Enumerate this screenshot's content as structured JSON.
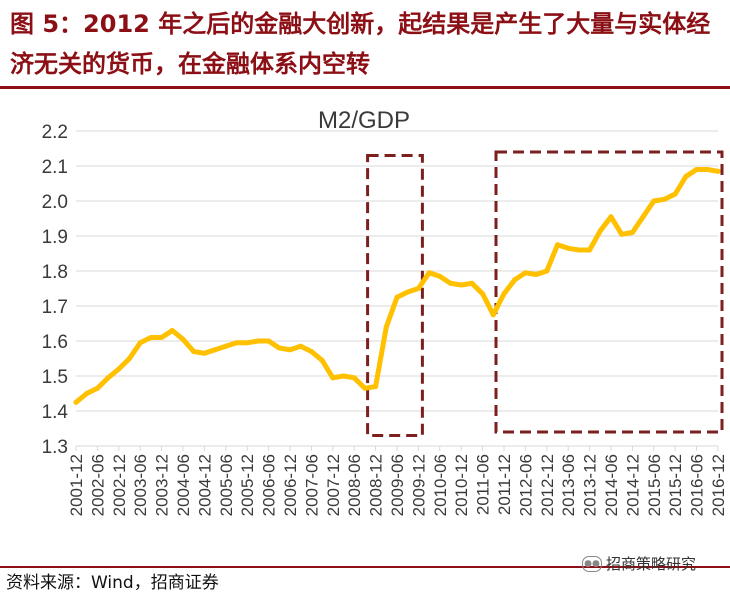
{
  "figure": {
    "title": "图 5：2012 年之后的金融大创新，起结果是产生了大量与实体经济无关的货币，在金融体系内空转",
    "source": "资料来源：Wind，招商证券",
    "watermark": "招商策略研究"
  },
  "colors": {
    "title": "#8b0f14",
    "line": "#ffc000",
    "box": "#7b1f1f",
    "grid": "#d9d9d9",
    "axis_text": "#3a3a3a"
  },
  "chart_data": {
    "type": "line",
    "title": "M2/GDP",
    "xlabel": "",
    "ylabel": "",
    "ylim": [
      1.3,
      2.2
    ],
    "yticks": [
      "2.2",
      "2.1",
      "2.0",
      "1.9",
      "1.8",
      "1.7",
      "1.6",
      "1.5",
      "1.4",
      "1.3"
    ],
    "grid": true,
    "x_tick_labels": [
      "2001-12",
      "2002-06",
      "2002-12",
      "2003-06",
      "2003-12",
      "2004-06",
      "2004-12",
      "2005-06",
      "2005-12",
      "2006-06",
      "2006-12",
      "2007-06",
      "2007-12",
      "2008-06",
      "2008-12",
      "2009-06",
      "2009-12",
      "2010-06",
      "2010-12",
      "2011-06",
      "2011-12",
      "2012-06",
      "2012-12",
      "2013-06",
      "2013-12",
      "2014-06",
      "2014-12",
      "2015-06",
      "2015-12",
      "2016-06",
      "2016-12"
    ],
    "series": [
      {
        "name": "M2/GDP",
        "x": [
          "2001-12",
          "2002-03",
          "2002-06",
          "2002-09",
          "2002-12",
          "2003-03",
          "2003-06",
          "2003-09",
          "2003-12",
          "2004-03",
          "2004-06",
          "2004-09",
          "2004-12",
          "2005-03",
          "2005-06",
          "2005-09",
          "2005-12",
          "2006-03",
          "2006-06",
          "2006-09",
          "2006-12",
          "2007-03",
          "2007-06",
          "2007-09",
          "2007-12",
          "2008-03",
          "2008-06",
          "2008-09",
          "2008-12",
          "2009-03",
          "2009-06",
          "2009-09",
          "2009-12",
          "2010-03",
          "2010-06",
          "2010-09",
          "2010-12",
          "2011-03",
          "2011-06",
          "2011-09",
          "2011-12",
          "2012-03",
          "2012-06",
          "2012-09",
          "2012-12",
          "2013-03",
          "2013-06",
          "2013-09",
          "2013-12",
          "2014-03",
          "2014-06",
          "2014-09",
          "2014-12",
          "2015-03",
          "2015-06",
          "2015-09",
          "2015-12",
          "2016-03",
          "2016-06",
          "2016-09",
          "2016-12"
        ],
        "values": [
          1.425,
          1.45,
          1.465,
          1.495,
          1.52,
          1.55,
          1.595,
          1.61,
          1.61,
          1.63,
          1.605,
          1.57,
          1.565,
          1.575,
          1.585,
          1.595,
          1.595,
          1.6,
          1.6,
          1.58,
          1.575,
          1.585,
          1.57,
          1.545,
          1.495,
          1.5,
          1.495,
          1.465,
          1.47,
          1.64,
          1.725,
          1.74,
          1.75,
          1.795,
          1.785,
          1.765,
          1.76,
          1.765,
          1.735,
          1.675,
          1.735,
          1.775,
          1.795,
          1.79,
          1.8,
          1.875,
          1.865,
          1.86,
          1.86,
          1.915,
          1.955,
          1.905,
          1.91,
          1.955,
          2.0,
          2.005,
          2.02,
          2.07,
          2.09,
          2.09,
          2.085
        ]
      }
    ],
    "highlight_boxes": [
      {
        "from": "2008-12",
        "to": "2009-12",
        "ymin": 1.33,
        "ymax": 2.13
      },
      {
        "from": "2011-12",
        "to": "2016-12",
        "ymin": 1.34,
        "ymax": 2.14
      }
    ]
  }
}
